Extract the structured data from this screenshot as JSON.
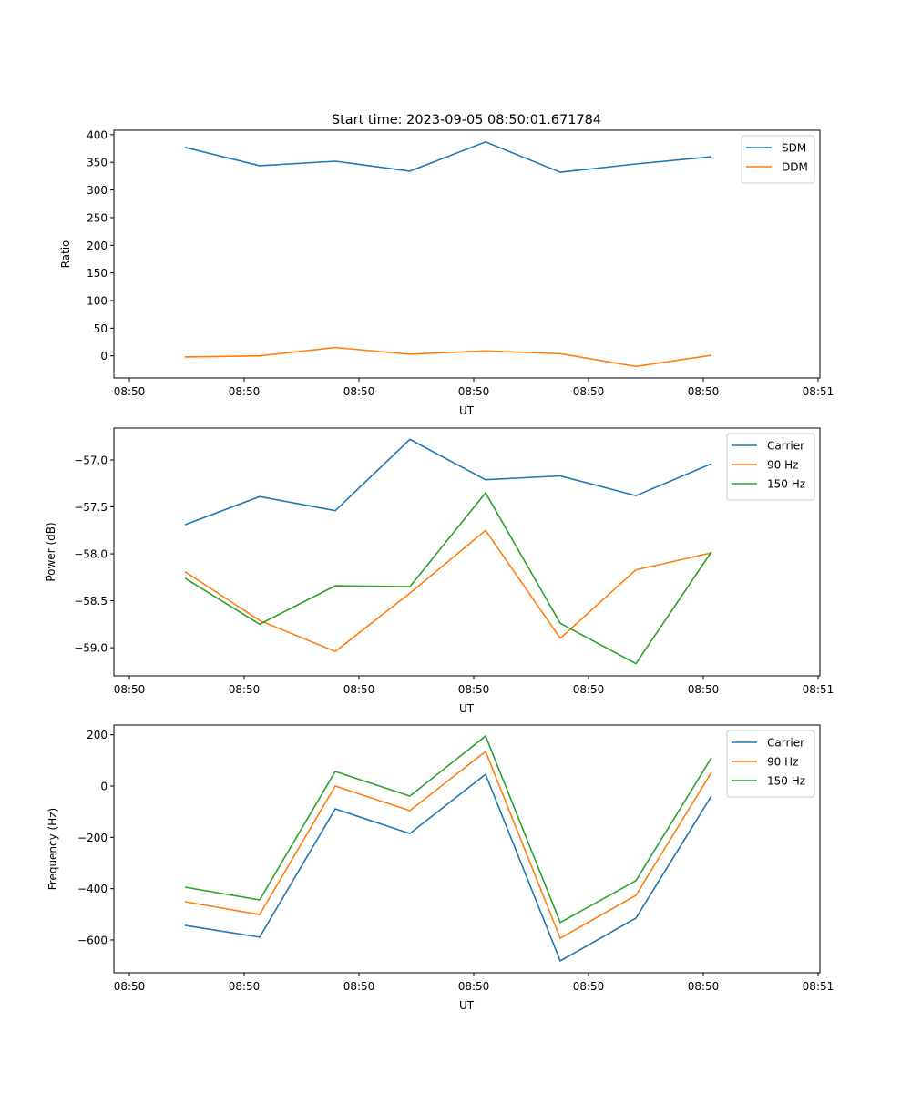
{
  "figure": {
    "title": "Start time: 2023-09-05 08:50:01.671784"
  },
  "colors": {
    "blue": "#1f77b4",
    "orange": "#ff7f0e",
    "green": "#2ca02c"
  },
  "chart_data": [
    {
      "type": "line",
      "title": "Start time: 2023-09-05 08:50:01.671784",
      "xlabel": "UT",
      "ylabel": "Ratio",
      "x_tick_labels": [
        "08:50",
        "08:50",
        "08:50",
        "08:50",
        "08:50",
        "08:50",
        "08:51"
      ],
      "x_tick_positions": [
        0,
        1,
        2,
        3,
        4,
        5,
        6
      ],
      "xlim": [
        -0.135,
        6.016
      ],
      "x": [
        0.484,
        1.135,
        1.794,
        2.444,
        3.103,
        3.754,
        4.413,
        5.071
      ],
      "y_ticks": [
        0,
        50,
        100,
        150,
        200,
        250,
        300,
        350,
        400
      ],
      "y_tick_labels": [
        "0",
        "50",
        "100",
        "150",
        "200",
        "250",
        "300",
        "350",
        "400"
      ],
      "ylim": [
        -40,
        408
      ],
      "legend": "top-right",
      "grid": false,
      "series": [
        {
          "name": "SDM",
          "color": "#1f77b4",
          "values": [
            377,
            344,
            352,
            334,
            387,
            332,
            347,
            360
          ]
        },
        {
          "name": "DDM",
          "color": "#ff7f0e",
          "values": [
            -2,
            0,
            15,
            3,
            9,
            4,
            -19,
            1
          ]
        }
      ]
    },
    {
      "type": "line",
      "title": "",
      "xlabel": "UT",
      "ylabel": "Power (dB)",
      "x_tick_labels": [
        "08:50",
        "08:50",
        "08:50",
        "08:50",
        "08:50",
        "08:50",
        "08:51"
      ],
      "x_tick_positions": [
        0,
        1,
        2,
        3,
        4,
        5,
        6
      ],
      "xlim": [
        -0.135,
        6.016
      ],
      "x": [
        0.484,
        1.135,
        1.794,
        2.444,
        3.103,
        3.754,
        4.413,
        5.071
      ],
      "y_ticks": [
        -59.0,
        -58.5,
        -58.0,
        -57.5,
        -57.0
      ],
      "y_tick_labels": [
        "−59.0",
        "−58.5",
        "−58.0",
        "−57.5",
        "−57.0"
      ],
      "ylim": [
        -59.3,
        -56.66
      ],
      "legend": "top-right",
      "grid": false,
      "series": [
        {
          "name": "Carrier",
          "color": "#1f77b4",
          "values": [
            -57.69,
            -57.39,
            -57.54,
            -56.78,
            -57.21,
            -57.17,
            -57.38,
            -57.04
          ]
        },
        {
          "name": "90 Hz",
          "color": "#ff7f0e",
          "values": [
            -58.19,
            -58.71,
            -59.04,
            -58.42,
            -57.75,
            -58.9,
            -58.17,
            -57.99
          ]
        },
        {
          "name": "150 Hz",
          "color": "#2ca02c",
          "values": [
            -58.26,
            -58.75,
            -58.34,
            -58.35,
            -57.35,
            -58.74,
            -59.17,
            -57.98
          ]
        }
      ]
    },
    {
      "type": "line",
      "title": "",
      "xlabel": "UT",
      "ylabel": "Frequency (Hz)",
      "x_tick_labels": [
        "08:50",
        "08:50",
        "08:50",
        "08:50",
        "08:50",
        "08:50",
        "08:51"
      ],
      "x_tick_positions": [
        0,
        1,
        2,
        3,
        4,
        5,
        6
      ],
      "xlim": [
        -0.135,
        6.016
      ],
      "x": [
        0.484,
        1.135,
        1.794,
        2.444,
        3.103,
        3.754,
        4.413,
        5.071
      ],
      "y_ticks": [
        -600,
        -400,
        -200,
        0,
        200
      ],
      "y_tick_labels": [
        "−600",
        "−400",
        "−200",
        "0",
        "200"
      ],
      "ylim": [
        -728,
        238
      ],
      "legend": "top-right",
      "grid": false,
      "series": [
        {
          "name": "Carrier",
          "color": "#1f77b4",
          "values": [
            -543,
            -589,
            -89,
            -185,
            46,
            -682,
            -515,
            -39
          ]
        },
        {
          "name": "90 Hz",
          "color": "#ff7f0e",
          "values": [
            -451,
            -501,
            0,
            -96,
            135,
            -593,
            -426,
            53
          ]
        },
        {
          "name": "150 Hz",
          "color": "#2ca02c",
          "values": [
            -394,
            -444,
            57,
            -39,
            195,
            -532,
            -369,
            110
          ]
        }
      ]
    }
  ]
}
